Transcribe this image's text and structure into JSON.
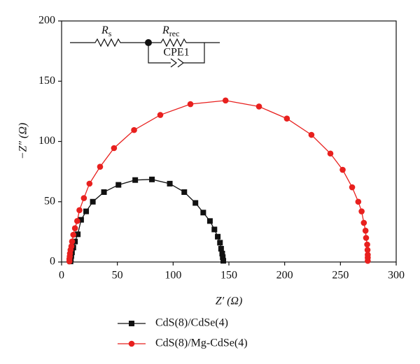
{
  "chart_data": {
    "type": "line",
    "x_label": "Z′ (Ω)",
    "y_label": "−Z″ (Ω)",
    "xlim": [
      0,
      300
    ],
    "xticks": [
      0,
      50,
      100,
      150,
      200,
      250,
      300
    ],
    "ylim": [
      0,
      200
    ],
    "yticks": [
      0,
      50,
      100,
      150,
      200
    ],
    "legend": "bottom-left",
    "annotations": {
      "rs": {
        "base": "R",
        "sub": "s"
      },
      "rrec": {
        "base": "R",
        "sub": "rec"
      },
      "cpe": "CPE1"
    },
    "series": [
      {
        "name": "CdS(8)/CdSe(4)",
        "color": "#111111",
        "marker": "square",
        "x": [
          8,
          8.3,
          8.7,
          9.3,
          10.5,
          12,
          14.5,
          17.5,
          22,
          28,
          38,
          51,
          66,
          81,
          97,
          110,
          120,
          127,
          133,
          137,
          140,
          142,
          143,
          144,
          144.5,
          145
        ],
        "values": [
          0.5,
          2.5,
          5,
          8,
          12,
          17,
          23,
          35,
          42,
          50,
          58,
          64,
          68,
          68.5,
          65,
          58,
          49,
          41,
          34,
          27,
          21,
          16,
          11,
          7,
          4,
          1
        ]
      },
      {
        "name": "CdS(8)/Mg-CdSe(4)",
        "color": "#e8201e",
        "marker": "circle",
        "x": [
          7,
          7,
          7.3,
          7.5,
          8,
          8.8,
          9.4,
          10.5,
          12,
          14,
          16,
          20,
          25,
          34.5,
          47,
          65,
          88.5,
          115.5,
          147,
          177,
          202,
          224,
          241,
          252,
          260.5,
          266,
          269,
          271,
          272.5,
          273,
          274,
          274.3,
          274.5,
          274.5,
          274.5
        ],
        "values": [
          0.5,
          2.5,
          4.6,
          7,
          10,
          13,
          17,
          22.6,
          28,
          34,
          43,
          53,
          65,
          79,
          94.5,
          109.5,
          122,
          131,
          134,
          129,
          119,
          105.5,
          90,
          76.5,
          62,
          50,
          42,
          32.5,
          26,
          20,
          14.5,
          10,
          6,
          3.5,
          1
        ]
      }
    ]
  }
}
